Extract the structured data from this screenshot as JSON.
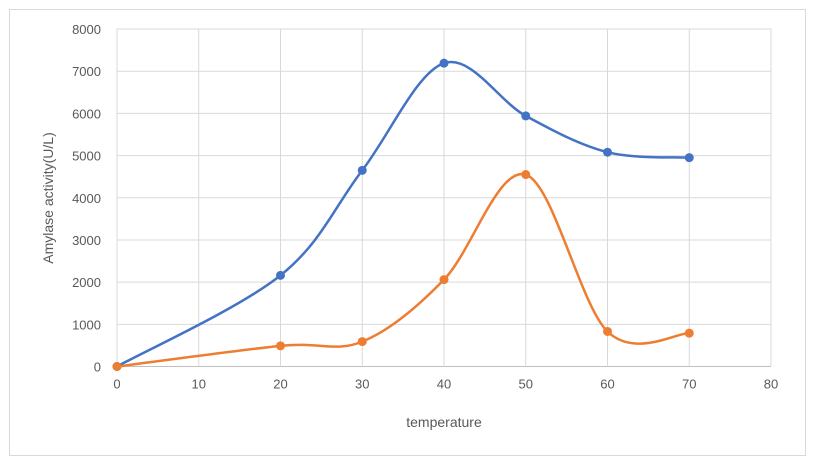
{
  "chart_data": {
    "type": "line",
    "title": "",
    "xlabel": "temperature",
    "ylabel": "Amylase activity(U/L)",
    "xlim": [
      0,
      80
    ],
    "ylim": [
      0,
      8000
    ],
    "xticks": [
      0,
      10,
      20,
      30,
      40,
      50,
      60,
      70,
      80
    ],
    "yticks": [
      0,
      1000,
      2000,
      3000,
      4000,
      5000,
      6000,
      7000,
      8000
    ],
    "grid": true,
    "smoothed": true,
    "legend": "none",
    "series": [
      {
        "color": "#4472c4",
        "x": [
          0,
          20,
          30,
          40,
          50,
          60,
          70
        ],
        "y": [
          0,
          2160,
          4650,
          7190,
          5940,
          5080,
          4950
        ]
      },
      {
        "color": "#ed7d31",
        "x": [
          0,
          20,
          30,
          40,
          50,
          60,
          70
        ],
        "y": [
          0,
          490,
          590,
          2060,
          4550,
          830,
          790
        ]
      }
    ]
  }
}
